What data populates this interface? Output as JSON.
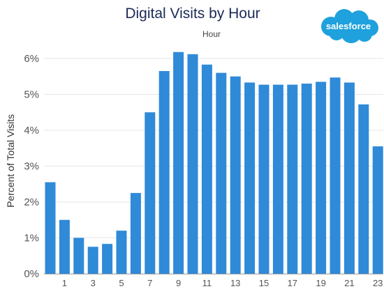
{
  "logo": {
    "text": "salesforce",
    "color": "#1ea1dc"
  },
  "chart_data": {
    "type": "bar",
    "title": "Digital Visits by Hour",
    "subtitle": "Hour",
    "ylabel": "Percent of Total Visits",
    "xlabel": "",
    "categories": [
      "0",
      "1",
      "2",
      "3",
      "4",
      "5",
      "6",
      "7",
      "8",
      "9",
      "10",
      "11",
      "12",
      "13",
      "14",
      "15",
      "16",
      "17",
      "18",
      "19",
      "20",
      "21",
      "22",
      "23"
    ],
    "x_tick_labels": [
      "1",
      "3",
      "5",
      "7",
      "9",
      "11",
      "13",
      "15",
      "17",
      "19",
      "21",
      "23"
    ],
    "values": [
      2.55,
      1.5,
      1.0,
      0.75,
      0.83,
      1.2,
      2.25,
      4.5,
      5.65,
      6.18,
      6.12,
      5.83,
      5.6,
      5.5,
      5.33,
      5.27,
      5.27,
      5.27,
      5.3,
      5.35,
      5.47,
      5.33,
      4.72,
      3.55
    ],
    "ylim": [
      0,
      6.5
    ],
    "y_ticks": [
      {
        "value": 0,
        "label": "0%"
      },
      {
        "value": 1,
        "label": "1%"
      },
      {
        "value": 2,
        "label": "2%"
      },
      {
        "value": 3,
        "label": "3%"
      },
      {
        "value": 4,
        "label": "4%"
      },
      {
        "value": 5,
        "label": "5%"
      },
      {
        "value": 6,
        "label": "6%"
      }
    ],
    "bar_color": "#2f8ad8",
    "grid": true,
    "legend": "none"
  }
}
